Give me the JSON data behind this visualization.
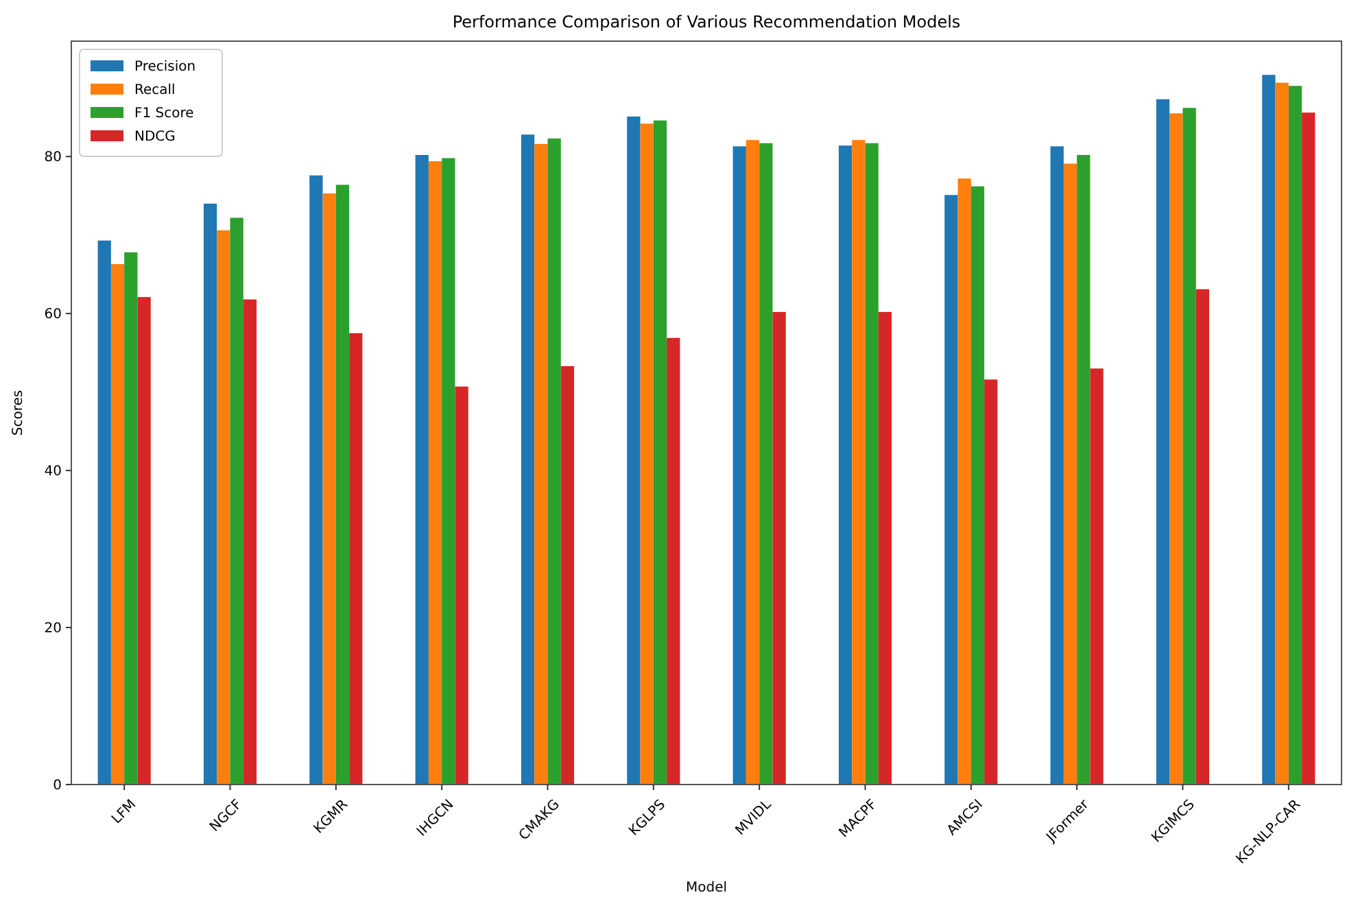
{
  "chart_data": {
    "type": "bar",
    "title": "Performance Comparison of Various Recommendation Models",
    "xlabel": "Model",
    "ylabel": "Scores",
    "categories": [
      "LFM",
      "NGCF",
      "KGMR",
      "IHGCN",
      "CMAKG",
      "KGLPS",
      "MVIDL",
      "MACPF",
      "AMCSI",
      "JFormer",
      "KGIMCS",
      "KG-NLP-CAR"
    ],
    "series": [
      {
        "name": "Precision",
        "color": "#1f77b4",
        "values": [
          69.3,
          74.0,
          77.6,
          80.2,
          82.8,
          85.1,
          81.3,
          81.4,
          75.1,
          81.3,
          87.3,
          90.4
        ]
      },
      {
        "name": "Recall",
        "color": "#ff7f0e",
        "values": [
          66.3,
          70.6,
          75.3,
          79.4,
          81.6,
          84.2,
          82.1,
          82.1,
          77.2,
          79.1,
          85.5,
          89.4
        ]
      },
      {
        "name": "F1 Score",
        "color": "#2ca02c",
        "values": [
          67.8,
          72.2,
          76.4,
          79.8,
          82.3,
          84.6,
          81.7,
          81.7,
          76.2,
          80.2,
          86.2,
          89.0
        ]
      },
      {
        "name": "NDCG",
        "color": "#d62728",
        "values": [
          62.1,
          61.8,
          57.5,
          50.7,
          53.3,
          56.9,
          60.2,
          60.2,
          51.6,
          53.0,
          63.1,
          85.6
        ]
      }
    ],
    "ylim": [
      0,
      94.7
    ],
    "yticks": [
      0,
      20,
      40,
      60,
      80
    ],
    "legend": "top left"
  }
}
